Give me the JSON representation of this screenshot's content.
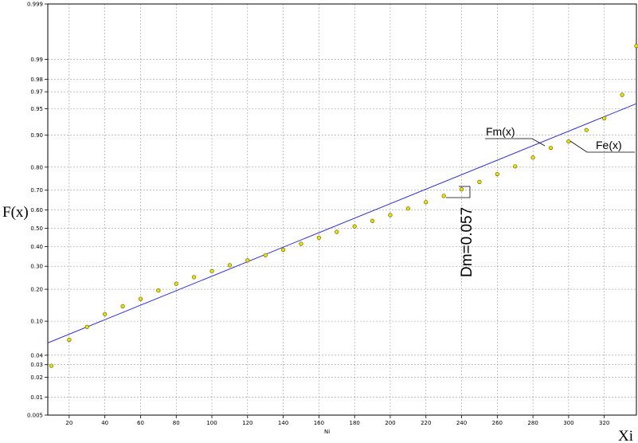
{
  "chart_data": {
    "type": "scatter",
    "title": "",
    "xlabel": "Xi",
    "x_sublabel": "Ni",
    "ylabel": "F(x)",
    "xlim": [
      8,
      338
    ],
    "y_scale": "probability",
    "grid": true,
    "x_ticks": [
      "20",
      "40",
      "60",
      "80",
      "100",
      "120",
      "140",
      "160",
      "180",
      "200",
      "220",
      "240",
      "260",
      "280",
      "300",
      "320"
    ],
    "y_ticks": [
      "0.999",
      "0.99",
      "0.98",
      "0.97",
      "0.95",
      "0.90",
      "0.80",
      "0.70",
      "0.60",
      "0.50",
      "0.40",
      "0.30",
      "0.20",
      "0.10",
      "0.04",
      "0.03",
      "0.02",
      "0.01",
      "0.005"
    ],
    "series": [
      {
        "name": "Fe(x)",
        "kind": "points",
        "color": "#e8e000",
        "x": [
          10,
          20,
          30,
          40,
          50,
          60,
          70,
          80,
          90,
          100,
          110,
          120,
          130,
          140,
          150,
          160,
          170,
          180,
          190,
          200,
          210,
          220,
          230,
          240,
          250,
          260,
          270,
          280,
          290,
          300,
          310,
          320,
          330,
          338
        ],
        "y": [
          0.029,
          0.062,
          0.087,
          0.118,
          0.141,
          0.165,
          0.195,
          0.222,
          0.25,
          0.277,
          0.305,
          0.329,
          0.355,
          0.383,
          0.415,
          0.448,
          0.48,
          0.51,
          0.54,
          0.572,
          0.607,
          0.64,
          0.672,
          0.704,
          0.738,
          0.772,
          0.803,
          0.835,
          0.866,
          0.884,
          0.912,
          0.935,
          0.967,
          0.994
        ]
      },
      {
        "name": "Fm(x)",
        "kind": "line",
        "color": "#3333cc",
        "x": [
          8,
          338
        ],
        "y": [
          0.057,
          0.957
        ]
      }
    ],
    "annotations": {
      "fm_label": "Fm(x)",
      "fe_label": "Fe(x)",
      "dm_label": "Dm=0.057"
    }
  }
}
